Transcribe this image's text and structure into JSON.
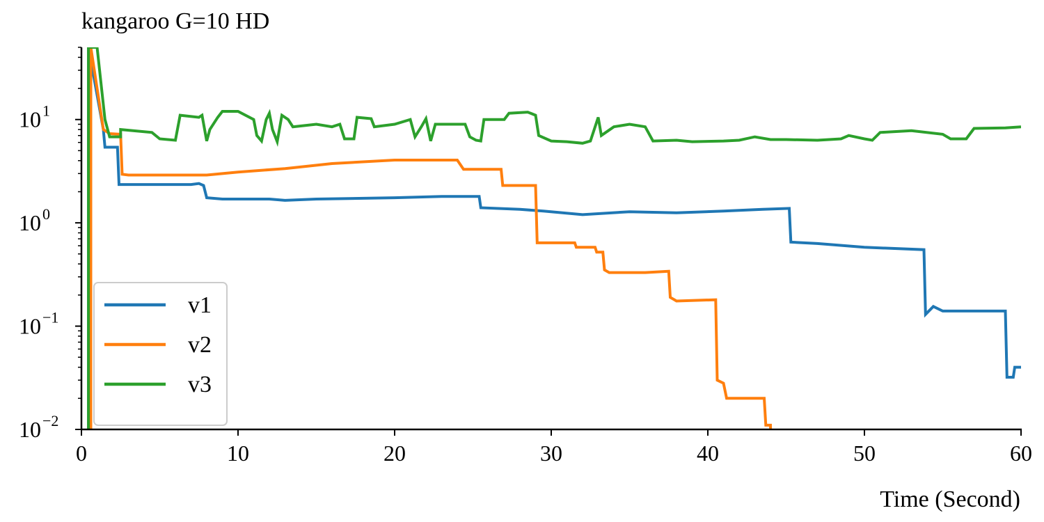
{
  "chart_data": {
    "type": "line",
    "title": "kangaroo G=10 HD",
    "xlabel": "Time (Second)",
    "ylabel": "",
    "yscale": "log",
    "xlim": [
      0,
      60
    ],
    "ylim": [
      0.01,
      50
    ],
    "xticks": [
      0,
      10,
      20,
      30,
      40,
      50,
      60
    ],
    "yticks": [
      {
        "value": 0.01,
        "base": "10",
        "exp": "−2"
      },
      {
        "value": 0.1,
        "base": "10",
        "exp": "−1"
      },
      {
        "value": 1,
        "base": "10",
        "exp": "0"
      },
      {
        "value": 10,
        "base": "10",
        "exp": "1"
      }
    ],
    "grid": false,
    "legend": {
      "placement": "lower-left"
    },
    "series": [
      {
        "name": "v1",
        "color": "#1f77b4",
        "points": [
          [
            0.45,
            0.005
          ],
          [
            0.45,
            50
          ],
          [
            1.4,
            8
          ],
          [
            1.5,
            5.4
          ],
          [
            2.3,
            5.4
          ],
          [
            2.4,
            2.35
          ],
          [
            7.0,
            2.35
          ],
          [
            7.5,
            2.4
          ],
          [
            7.8,
            2.3
          ],
          [
            8.0,
            1.75
          ],
          [
            9.0,
            1.7
          ],
          [
            12.0,
            1.7
          ],
          [
            13.0,
            1.65
          ],
          [
            15.0,
            1.7
          ],
          [
            20.0,
            1.75
          ],
          [
            23.0,
            1.8
          ],
          [
            25.4,
            1.8
          ],
          [
            25.5,
            1.4
          ],
          [
            28.0,
            1.35
          ],
          [
            29.5,
            1.3
          ],
          [
            32.0,
            1.2
          ],
          [
            35.0,
            1.28
          ],
          [
            38.0,
            1.25
          ],
          [
            41.0,
            1.3
          ],
          [
            43.5,
            1.35
          ],
          [
            45.2,
            1.38
          ],
          [
            45.3,
            0.65
          ],
          [
            47.0,
            0.63
          ],
          [
            50.0,
            0.58
          ],
          [
            53.8,
            0.55
          ],
          [
            53.9,
            0.13
          ],
          [
            54.4,
            0.155
          ],
          [
            55.0,
            0.14
          ],
          [
            59.0,
            0.14
          ],
          [
            59.1,
            0.032
          ],
          [
            59.5,
            0.032
          ],
          [
            59.6,
            0.04
          ],
          [
            60.0,
            0.04
          ]
        ]
      },
      {
        "name": "v2",
        "color": "#ff7f0e",
        "points": [
          [
            0.6,
            0.005
          ],
          [
            0.6,
            50
          ],
          [
            1.4,
            8
          ],
          [
            1.8,
            7.3
          ],
          [
            2.5,
            7.2
          ],
          [
            2.6,
            2.95
          ],
          [
            3.0,
            2.9
          ],
          [
            8.0,
            2.9
          ],
          [
            10.0,
            3.1
          ],
          [
            13.0,
            3.35
          ],
          [
            16.0,
            3.75
          ],
          [
            20.0,
            4.05
          ],
          [
            24.0,
            4.05
          ],
          [
            24.4,
            3.3
          ],
          [
            26.8,
            3.3
          ],
          [
            26.9,
            2.3
          ],
          [
            29.0,
            2.3
          ],
          [
            29.1,
            0.64
          ],
          [
            31.5,
            0.64
          ],
          [
            31.6,
            0.58
          ],
          [
            32.8,
            0.58
          ],
          [
            32.9,
            0.52
          ],
          [
            33.3,
            0.52
          ],
          [
            33.4,
            0.35
          ],
          [
            33.7,
            0.33
          ],
          [
            36.0,
            0.33
          ],
          [
            37.5,
            0.34
          ],
          [
            37.6,
            0.19
          ],
          [
            38.0,
            0.175
          ],
          [
            40.5,
            0.18
          ],
          [
            40.6,
            0.03
          ],
          [
            41.0,
            0.028
          ],
          [
            41.2,
            0.02
          ],
          [
            43.6,
            0.02
          ],
          [
            43.7,
            0.011
          ],
          [
            44.0,
            0.011
          ],
          [
            44.05,
            0.005
          ]
        ]
      },
      {
        "name": "v3",
        "color": "#2ca02c",
        "points": [
          [
            0.45,
            0.005
          ],
          [
            0.45,
            50
          ],
          [
            1.0,
            50
          ],
          [
            1.5,
            10
          ],
          [
            1.8,
            6.8
          ],
          [
            2.5,
            6.8
          ],
          [
            2.5,
            8
          ],
          [
            4.5,
            7.5
          ],
          [
            5.0,
            6.5
          ],
          [
            6.0,
            6.3
          ],
          [
            6.3,
            11
          ],
          [
            7.5,
            10.5
          ],
          [
            7.7,
            11
          ],
          [
            8.0,
            6.2
          ],
          [
            8.2,
            8
          ],
          [
            8.7,
            10.5
          ],
          [
            9.0,
            12
          ],
          [
            10.0,
            12
          ],
          [
            11.0,
            10
          ],
          [
            11.2,
            7
          ],
          [
            11.5,
            6.2
          ],
          [
            11.8,
            10
          ],
          [
            12.0,
            11.5
          ],
          [
            12.2,
            8
          ],
          [
            12.5,
            6.1
          ],
          [
            12.8,
            11
          ],
          [
            13.2,
            10
          ],
          [
            13.5,
            8.5
          ],
          [
            15.0,
            9
          ],
          [
            16.0,
            8.5
          ],
          [
            16.5,
            9
          ],
          [
            16.8,
            6.5
          ],
          [
            17.4,
            6.5
          ],
          [
            17.6,
            10.5
          ],
          [
            18.5,
            10.2
          ],
          [
            18.7,
            8.5
          ],
          [
            20.0,
            9
          ],
          [
            21.0,
            10
          ],
          [
            21.3,
            6.8
          ],
          [
            21.7,
            8.5
          ],
          [
            22.0,
            10.2
          ],
          [
            22.3,
            6.2
          ],
          [
            22.6,
            9
          ],
          [
            24.5,
            9
          ],
          [
            24.8,
            6.8
          ],
          [
            25.2,
            6.3
          ],
          [
            25.5,
            6.2
          ],
          [
            25.7,
            10
          ],
          [
            27.0,
            10
          ],
          [
            27.3,
            11.5
          ],
          [
            28.5,
            11.8
          ],
          [
            29.0,
            11
          ],
          [
            29.2,
            7
          ],
          [
            30.0,
            6.2
          ],
          [
            31.0,
            6.1
          ],
          [
            32.0,
            5.9
          ],
          [
            32.5,
            6.2
          ],
          [
            33.0,
            10.5
          ],
          [
            33.2,
            7
          ],
          [
            34.0,
            8.5
          ],
          [
            35.0,
            9
          ],
          [
            36.0,
            8.5
          ],
          [
            36.5,
            6.2
          ],
          [
            38.0,
            6.3
          ],
          [
            39.0,
            6.1
          ],
          [
            41.0,
            6.2
          ],
          [
            42.0,
            6.3
          ],
          [
            43.0,
            6.8
          ],
          [
            44.0,
            6.4
          ],
          [
            45.0,
            6.4
          ],
          [
            47.0,
            6.3
          ],
          [
            48.5,
            6.5
          ],
          [
            49.0,
            7
          ],
          [
            50.0,
            6.5
          ],
          [
            50.5,
            6.3
          ],
          [
            51.0,
            7.5
          ],
          [
            53.0,
            7.8
          ],
          [
            55.0,
            7.2
          ],
          [
            55.5,
            6.5
          ],
          [
            56.5,
            6.5
          ],
          [
            57.0,
            8.2
          ],
          [
            59.0,
            8.3
          ],
          [
            60.0,
            8.5
          ]
        ]
      }
    ]
  }
}
